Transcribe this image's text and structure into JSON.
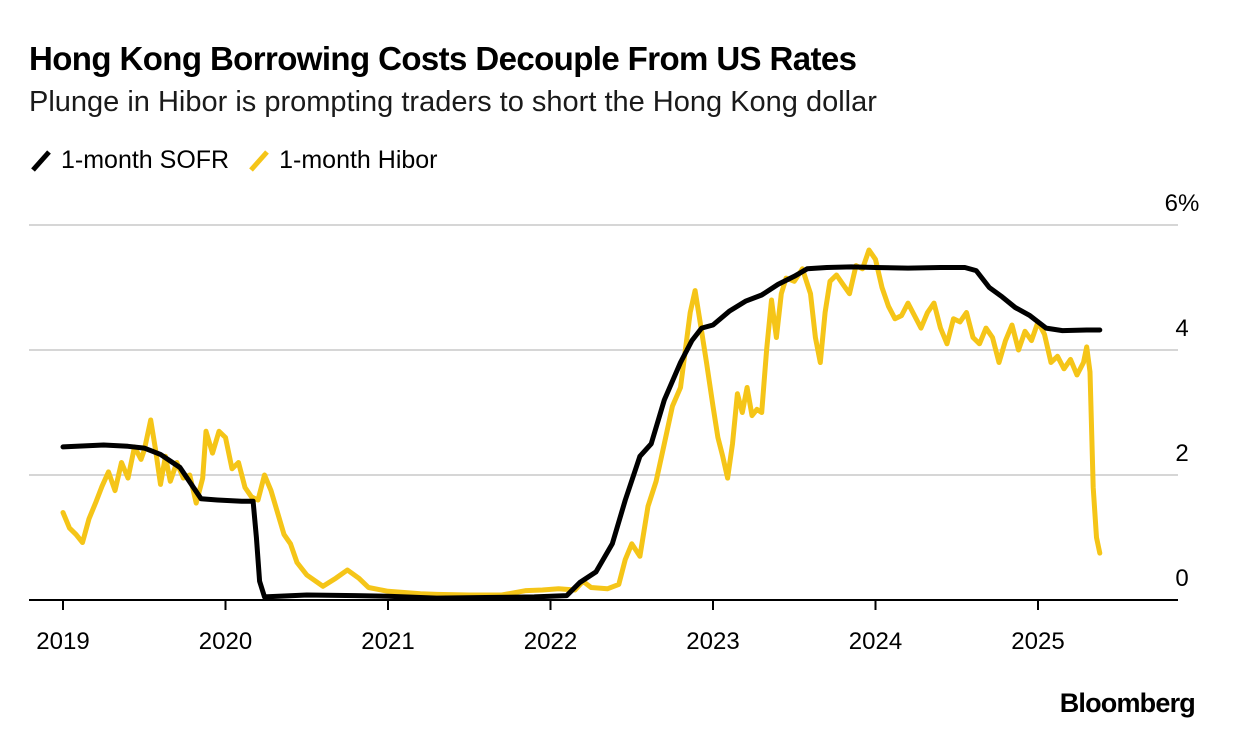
{
  "chart_data": {
    "type": "line",
    "title": "Hong Kong Borrowing Costs Decouple From US Rates",
    "subtitle": "Plunge in Hibor is prompting traders to short the Hong Kong dollar",
    "xlabel": "",
    "ylabel": "",
    "xlim": [
      2018.8,
      2025.85
    ],
    "ylim": [
      0,
      6
    ],
    "y_ticks": [
      {
        "value": 0,
        "label": "0"
      },
      {
        "value": 2,
        "label": "2"
      },
      {
        "value": 4,
        "label": "4"
      },
      {
        "value": 6,
        "label": "6%"
      }
    ],
    "x_ticks": [
      {
        "value": 2019,
        "label": "2019"
      },
      {
        "value": 2020,
        "label": "2020"
      },
      {
        "value": 2021,
        "label": "2021"
      },
      {
        "value": 2022,
        "label": "2022"
      },
      {
        "value": 2023,
        "label": "2023"
      },
      {
        "value": 2024,
        "label": "2024"
      },
      {
        "value": 2025,
        "label": "2025"
      }
    ],
    "grid": true,
    "legend_position": "top-left",
    "series": [
      {
        "name": "1-month SOFR",
        "color": "#000000",
        "points": [
          [
            2019.0,
            2.45
          ],
          [
            2019.25,
            2.48
          ],
          [
            2019.4,
            2.46
          ],
          [
            2019.5,
            2.43
          ],
          [
            2019.6,
            2.33
          ],
          [
            2019.72,
            2.12
          ],
          [
            2019.85,
            1.62
          ],
          [
            2019.95,
            1.6
          ],
          [
            2020.1,
            1.58
          ],
          [
            2020.17,
            1.58
          ],
          [
            2020.19,
            1.0
          ],
          [
            2020.21,
            0.3
          ],
          [
            2020.24,
            0.05
          ],
          [
            2020.5,
            0.08
          ],
          [
            2020.8,
            0.07
          ],
          [
            2021.0,
            0.06
          ],
          [
            2021.3,
            0.03
          ],
          [
            2021.6,
            0.04
          ],
          [
            2021.9,
            0.05
          ],
          [
            2022.1,
            0.07
          ],
          [
            2022.18,
            0.28
          ],
          [
            2022.28,
            0.45
          ],
          [
            2022.38,
            0.9
          ],
          [
            2022.46,
            1.6
          ],
          [
            2022.55,
            2.3
          ],
          [
            2022.62,
            2.5
          ],
          [
            2022.7,
            3.2
          ],
          [
            2022.8,
            3.8
          ],
          [
            2022.87,
            4.15
          ],
          [
            2022.93,
            4.35
          ],
          [
            2023.0,
            4.4
          ],
          [
            2023.1,
            4.62
          ],
          [
            2023.2,
            4.78
          ],
          [
            2023.3,
            4.88
          ],
          [
            2023.4,
            5.05
          ],
          [
            2023.5,
            5.18
          ],
          [
            2023.58,
            5.3
          ],
          [
            2023.7,
            5.32
          ],
          [
            2023.85,
            5.33
          ],
          [
            2024.0,
            5.32
          ],
          [
            2024.2,
            5.31
          ],
          [
            2024.4,
            5.32
          ],
          [
            2024.55,
            5.32
          ],
          [
            2024.62,
            5.27
          ],
          [
            2024.7,
            5.0
          ],
          [
            2024.78,
            4.85
          ],
          [
            2024.86,
            4.68
          ],
          [
            2024.95,
            4.55
          ],
          [
            2025.05,
            4.35
          ],
          [
            2025.15,
            4.31
          ],
          [
            2025.3,
            4.32
          ],
          [
            2025.38,
            4.32
          ]
        ]
      },
      {
        "name": "1-month Hibor",
        "color": "#f5c518",
        "points": [
          [
            2019.0,
            1.4
          ],
          [
            2019.04,
            1.15
          ],
          [
            2019.08,
            1.05
          ],
          [
            2019.12,
            0.92
          ],
          [
            2019.16,
            1.3
          ],
          [
            2019.2,
            1.55
          ],
          [
            2019.24,
            1.82
          ],
          [
            2019.28,
            2.05
          ],
          [
            2019.32,
            1.75
          ],
          [
            2019.36,
            2.2
          ],
          [
            2019.4,
            1.95
          ],
          [
            2019.44,
            2.45
          ],
          [
            2019.48,
            2.25
          ],
          [
            2019.5,
            2.4
          ],
          [
            2019.54,
            2.88
          ],
          [
            2019.57,
            2.4
          ],
          [
            2019.6,
            1.85
          ],
          [
            2019.63,
            2.3
          ],
          [
            2019.66,
            1.9
          ],
          [
            2019.7,
            2.2
          ],
          [
            2019.74,
            1.95
          ],
          [
            2019.78,
            2.0
          ],
          [
            2019.82,
            1.55
          ],
          [
            2019.86,
            1.95
          ],
          [
            2019.88,
            2.7
          ],
          [
            2019.92,
            2.35
          ],
          [
            2019.96,
            2.7
          ],
          [
            2020.0,
            2.6
          ],
          [
            2020.04,
            2.1
          ],
          [
            2020.08,
            2.2
          ],
          [
            2020.12,
            1.8
          ],
          [
            2020.16,
            1.65
          ],
          [
            2020.2,
            1.6
          ],
          [
            2020.24,
            2.0
          ],
          [
            2020.28,
            1.75
          ],
          [
            2020.32,
            1.4
          ],
          [
            2020.36,
            1.05
          ],
          [
            2020.4,
            0.9
          ],
          [
            2020.44,
            0.6
          ],
          [
            2020.5,
            0.4
          ],
          [
            2020.6,
            0.22
          ],
          [
            2020.68,
            0.35
          ],
          [
            2020.75,
            0.48
          ],
          [
            2020.82,
            0.35
          ],
          [
            2020.88,
            0.2
          ],
          [
            2021.0,
            0.14
          ],
          [
            2021.1,
            0.12
          ],
          [
            2021.2,
            0.1
          ],
          [
            2021.3,
            0.09
          ],
          [
            2021.5,
            0.08
          ],
          [
            2021.7,
            0.08
          ],
          [
            2021.85,
            0.15
          ],
          [
            2021.95,
            0.16
          ],
          [
            2022.05,
            0.18
          ],
          [
            2022.15,
            0.16
          ],
          [
            2022.2,
            0.3
          ],
          [
            2022.25,
            0.2
          ],
          [
            2022.35,
            0.18
          ],
          [
            2022.42,
            0.25
          ],
          [
            2022.46,
            0.65
          ],
          [
            2022.5,
            0.9
          ],
          [
            2022.55,
            0.7
          ],
          [
            2022.6,
            1.5
          ],
          [
            2022.65,
            1.9
          ],
          [
            2022.7,
            2.5
          ],
          [
            2022.75,
            3.1
          ],
          [
            2022.8,
            3.4
          ],
          [
            2022.86,
            4.6
          ],
          [
            2022.89,
            4.95
          ],
          [
            2022.93,
            4.3
          ],
          [
            2022.96,
            3.8
          ],
          [
            2023.0,
            3.1
          ],
          [
            2023.03,
            2.6
          ],
          [
            2023.06,
            2.3
          ],
          [
            2023.09,
            1.95
          ],
          [
            2023.12,
            2.5
          ],
          [
            2023.15,
            3.3
          ],
          [
            2023.18,
            3.0
          ],
          [
            2023.21,
            3.4
          ],
          [
            2023.24,
            2.95
          ],
          [
            2023.27,
            3.05
          ],
          [
            2023.3,
            3.0
          ],
          [
            2023.33,
            4.0
          ],
          [
            2023.36,
            4.8
          ],
          [
            2023.39,
            4.2
          ],
          [
            2023.42,
            4.9
          ],
          [
            2023.45,
            5.15
          ],
          [
            2023.5,
            5.1
          ],
          [
            2023.55,
            5.3
          ],
          [
            2023.6,
            4.9
          ],
          [
            2023.63,
            4.2
          ],
          [
            2023.66,
            3.8
          ],
          [
            2023.69,
            4.6
          ],
          [
            2023.72,
            5.1
          ],
          [
            2023.76,
            5.2
          ],
          [
            2023.8,
            5.05
          ],
          [
            2023.84,
            4.9
          ],
          [
            2023.88,
            5.35
          ],
          [
            2023.92,
            5.3
          ],
          [
            2023.96,
            5.6
          ],
          [
            2024.0,
            5.45
          ],
          [
            2024.04,
            5.0
          ],
          [
            2024.08,
            4.7
          ],
          [
            2024.12,
            4.5
          ],
          [
            2024.16,
            4.55
          ],
          [
            2024.2,
            4.75
          ],
          [
            2024.24,
            4.55
          ],
          [
            2024.28,
            4.35
          ],
          [
            2024.32,
            4.6
          ],
          [
            2024.36,
            4.75
          ],
          [
            2024.4,
            4.35
          ],
          [
            2024.44,
            4.1
          ],
          [
            2024.48,
            4.5
          ],
          [
            2024.52,
            4.45
          ],
          [
            2024.56,
            4.6
          ],
          [
            2024.6,
            4.2
          ],
          [
            2024.64,
            4.1
          ],
          [
            2024.68,
            4.35
          ],
          [
            2024.72,
            4.2
          ],
          [
            2024.76,
            3.8
          ],
          [
            2024.8,
            4.15
          ],
          [
            2024.84,
            4.4
          ],
          [
            2024.88,
            4.0
          ],
          [
            2024.92,
            4.3
          ],
          [
            2024.96,
            4.15
          ],
          [
            2025.0,
            4.45
          ],
          [
            2025.04,
            4.25
          ],
          [
            2025.08,
            3.8
          ],
          [
            2025.12,
            3.9
          ],
          [
            2025.16,
            3.7
          ],
          [
            2025.2,
            3.85
          ],
          [
            2025.24,
            3.6
          ],
          [
            2025.28,
            3.8
          ],
          [
            2025.3,
            4.05
          ],
          [
            2025.32,
            3.65
          ],
          [
            2025.34,
            1.8
          ],
          [
            2025.36,
            1.0
          ],
          [
            2025.38,
            0.75
          ]
        ]
      }
    ]
  },
  "brand": "Bloomberg"
}
